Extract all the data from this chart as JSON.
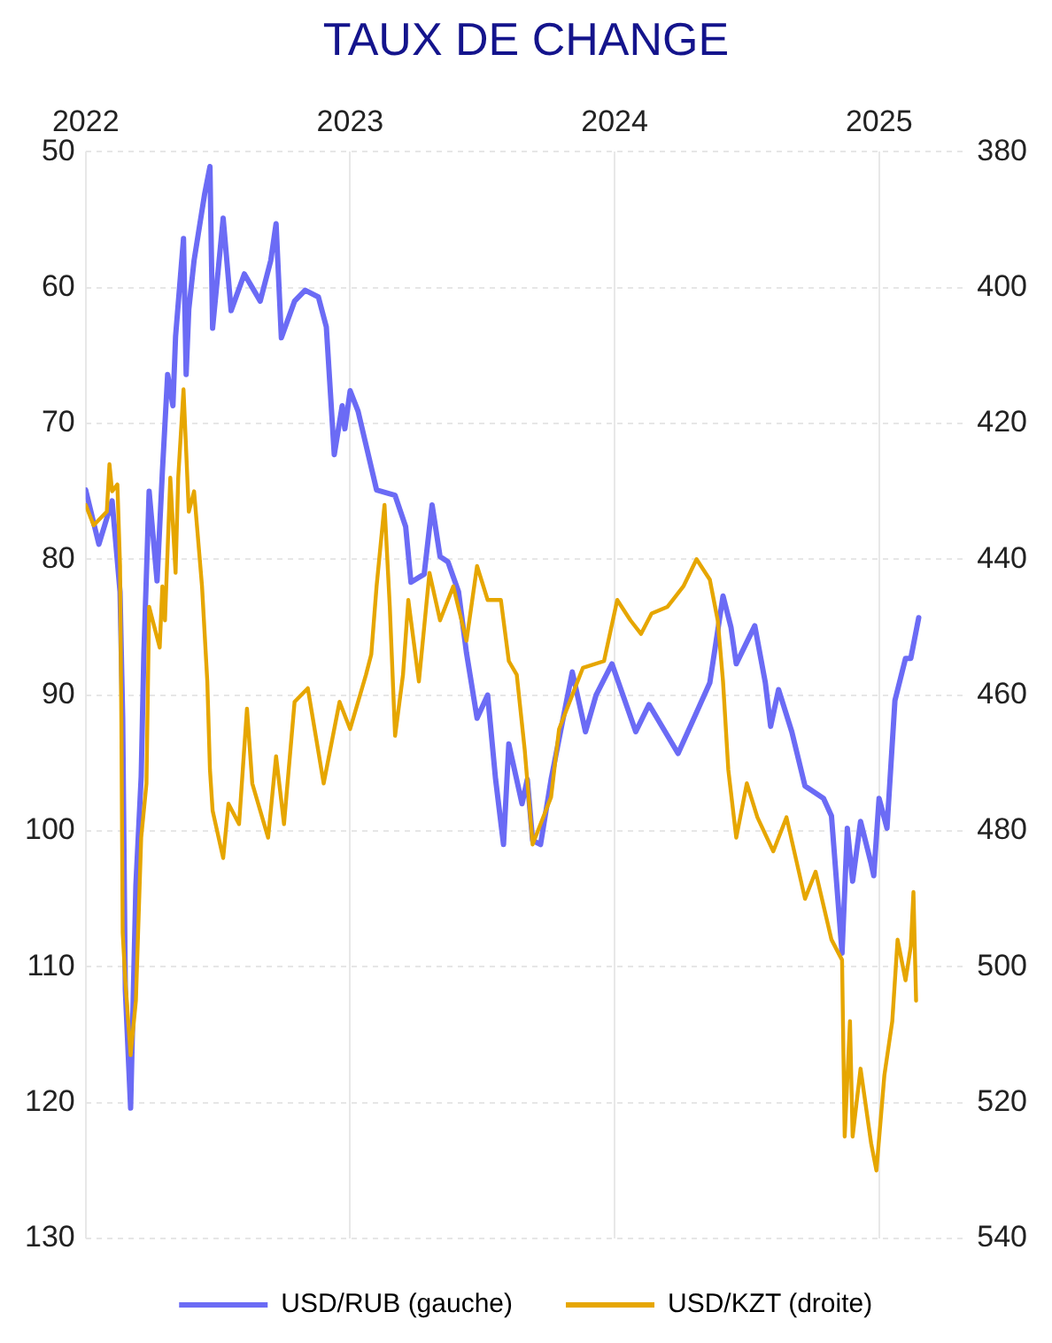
{
  "chart_data": {
    "type": "line",
    "title": "TAUX DE CHANGE",
    "xlim": [
      2022,
      2025.33
    ],
    "xticks": [
      2022,
      2023,
      2024,
      2025
    ],
    "ylim": [
      130,
      50
    ],
    "yticks": [
      50,
      60,
      70,
      80,
      90,
      100,
      110,
      120,
      130
    ],
    "y2lim": [
      540,
      380
    ],
    "y2ticks": [
      380,
      400,
      420,
      440,
      460,
      480,
      500,
      520,
      540
    ],
    "grid": true,
    "legend": "bottom",
    "marker": "none",
    "line_style": "solid",
    "series": [
      {
        "name": "USD/RUB (gauche)",
        "color": "#6b6bf5",
        "x": [
          2022.0,
          2022.05,
          2022.1,
          2022.13,
          2022.14,
          2022.15,
          2022.17,
          2022.19,
          2022.21,
          2022.22,
          2022.24,
          2022.27,
          2022.29,
          2022.31,
          2022.33,
          2022.34,
          2022.37,
          2022.38,
          2022.39,
          2022.41,
          2022.45,
          2022.47,
          2022.48,
          2022.52,
          2022.55,
          2022.6,
          2022.66,
          2022.7,
          2022.72,
          2022.74,
          2022.79,
          2022.83,
          2022.88,
          2022.91,
          2022.94,
          2022.97,
          2022.98,
          2023.0,
          2023.03,
          2023.1,
          2023.17,
          2023.21,
          2023.23,
          2023.28,
          2023.31,
          2023.34,
          2023.37,
          2023.41,
          2023.44,
          2023.48,
          2023.52,
          2023.55,
          2023.58,
          2023.6,
          2023.65,
          2023.67,
          2023.69,
          2023.72,
          2023.76,
          2023.84,
          2023.89,
          2023.93,
          2023.99,
          2024.08,
          2024.13,
          2024.24,
          2024.3,
          2024.36,
          2024.41,
          2024.44,
          2024.46,
          2024.53,
          2024.57,
          2024.59,
          2024.62,
          2024.67,
          2024.72,
          2024.79,
          2024.82,
          2024.86,
          2024.88,
          2024.9,
          2024.93,
          2024.97,
          2024.98,
          2025.0,
          2025.03,
          2025.06,
          2025.1,
          2025.12,
          2025.15
        ],
        "values": [
          74.9,
          78.9,
          75.7,
          82.4,
          91.7,
          111.7,
          120.4,
          104,
          96,
          87,
          75,
          81.6,
          73.6,
          66.4,
          68.7,
          63.6,
          56.4,
          66.4,
          61.6,
          58,
          53.1,
          51.1,
          63,
          54.9,
          61.7,
          59,
          61,
          58,
          55.3,
          63.7,
          61,
          60.2,
          60.7,
          62.9,
          72.3,
          68.7,
          70.4,
          67.6,
          69.1,
          74.9,
          75.3,
          77.6,
          81.7,
          81.1,
          76,
          79.8,
          80.2,
          82.4,
          86.9,
          91.7,
          90,
          96.2,
          101,
          93.6,
          98,
          96.2,
          100.7,
          101,
          96.2,
          88.3,
          92.7,
          90,
          87.7,
          92.7,
          90.7,
          94.3,
          91.7,
          89.1,
          82.7,
          85,
          87.7,
          84.9,
          89.1,
          92.3,
          89.6,
          92.7,
          96.7,
          97.6,
          98.9,
          109,
          99.8,
          103.7,
          99.3,
          102.4,
          103.3,
          97.6,
          99.8,
          90.4,
          87.3,
          87.3,
          84.3
        ]
      },
      {
        "name": "USD/KZT (droite)",
        "color": "#e6a600",
        "axis": "y2",
        "x": [
          2022.0,
          2022.03,
          2022.08,
          2022.09,
          2022.1,
          2022.12,
          2022.13,
          2022.135,
          2022.14,
          2022.15,
          2022.17,
          2022.19,
          2022.21,
          2022.23,
          2022.24,
          2022.28,
          2022.29,
          2022.3,
          2022.32,
          2022.34,
          2022.35,
          2022.37,
          2022.39,
          2022.41,
          2022.44,
          2022.46,
          2022.47,
          2022.48,
          2022.52,
          2022.54,
          2022.58,
          2022.61,
          2022.63,
          2022.69,
          2022.72,
          2022.75,
          2022.79,
          2022.84,
          2022.9,
          2022.96,
          2023.0,
          2023.06,
          2023.08,
          2023.1,
          2023.13,
          2023.15,
          2023.17,
          2023.2,
          2023.22,
          2023.26,
          2023.3,
          2023.34,
          2023.39,
          2023.44,
          2023.48,
          2023.52,
          2023.57,
          2023.6,
          2023.63,
          2023.66,
          2023.69,
          2023.72,
          2023.76,
          2023.79,
          2023.84,
          2023.88,
          2023.96,
          2024.01,
          2024.06,
          2024.1,
          2024.14,
          2024.2,
          2024.26,
          2024.31,
          2024.36,
          2024.39,
          2024.41,
          2024.43,
          2024.46,
          2024.5,
          2024.54,
          2024.6,
          2024.65,
          2024.72,
          2024.76,
          2024.82,
          2024.86,
          2024.87,
          2024.89,
          2024.9,
          2024.93,
          2024.97,
          2024.99,
          2025.02,
          2025.05,
          2025.07,
          2025.1,
          2025.12,
          2025.13,
          2025.14
        ],
        "values": [
          432,
          435,
          433,
          426,
          430,
          429,
          441,
          464,
          495,
          502,
          513,
          505,
          481,
          473,
          447,
          453,
          444,
          449,
          428,
          442,
          428,
          415,
          433,
          430,
          444,
          458,
          471,
          477,
          484,
          476,
          479,
          462,
          473,
          481,
          469,
          479,
          461,
          459,
          473,
          461,
          465,
          457,
          454,
          444,
          432,
          447,
          466,
          457,
          446,
          458,
          442,
          449,
          444,
          452,
          441,
          446,
          446,
          455,
          457,
          468,
          482,
          479,
          475,
          465,
          460,
          456,
          455,
          446,
          449,
          451,
          448,
          447,
          444,
          440,
          443,
          449,
          458,
          471,
          481,
          473,
          478,
          483,
          478,
          490,
          486,
          496,
          499,
          525,
          508,
          525,
          515,
          526,
          530,
          516,
          508,
          496,
          502,
          497,
          489,
          505
        ]
      }
    ]
  }
}
